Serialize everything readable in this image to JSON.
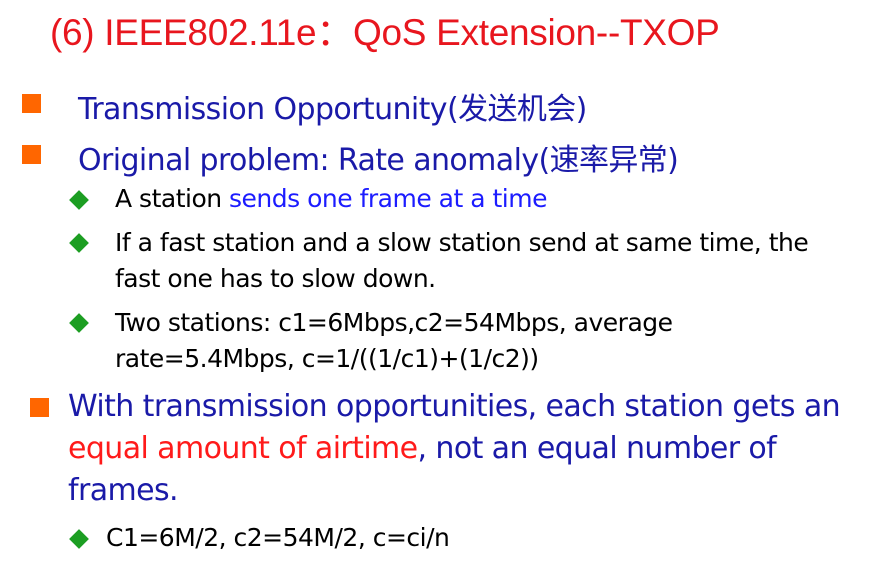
{
  "title": "(6) IEEE802.11e：QoS Extension--TXOP",
  "bullets": {
    "b1": "Transmission Opportunity(发送机会)",
    "b2": "Original problem: Rate anomaly(速率异常)",
    "b2_sub1_a": "A station ",
    "b2_sub1_b": "sends one frame at a time",
    "b2_sub2": "If a fast station and a slow station send at same time, the fast one has to slow down.",
    "b2_sub3": "Two stations: c1=6Mbps,c2=54Mbps, average rate=5.4Mbps, c=1/((1/c1)+(1/c2))",
    "b3_a": "With transmission opportunities, each station gets an ",
    "b3_b": "equal amount of airtime",
    "b3_c": ", not an equal number of frames.",
    "b3_sub1": "C1=6M/2, c2=54M/2, c=ci/n"
  },
  "colors": {
    "title": "#e8161e",
    "level1_text": "#1a1aa8",
    "highlight_blue": "#1c1cff",
    "highlight_red": "#ff1a1a",
    "square_bullet": "#ff6600",
    "diamond_bullet": "#1c9e22"
  }
}
